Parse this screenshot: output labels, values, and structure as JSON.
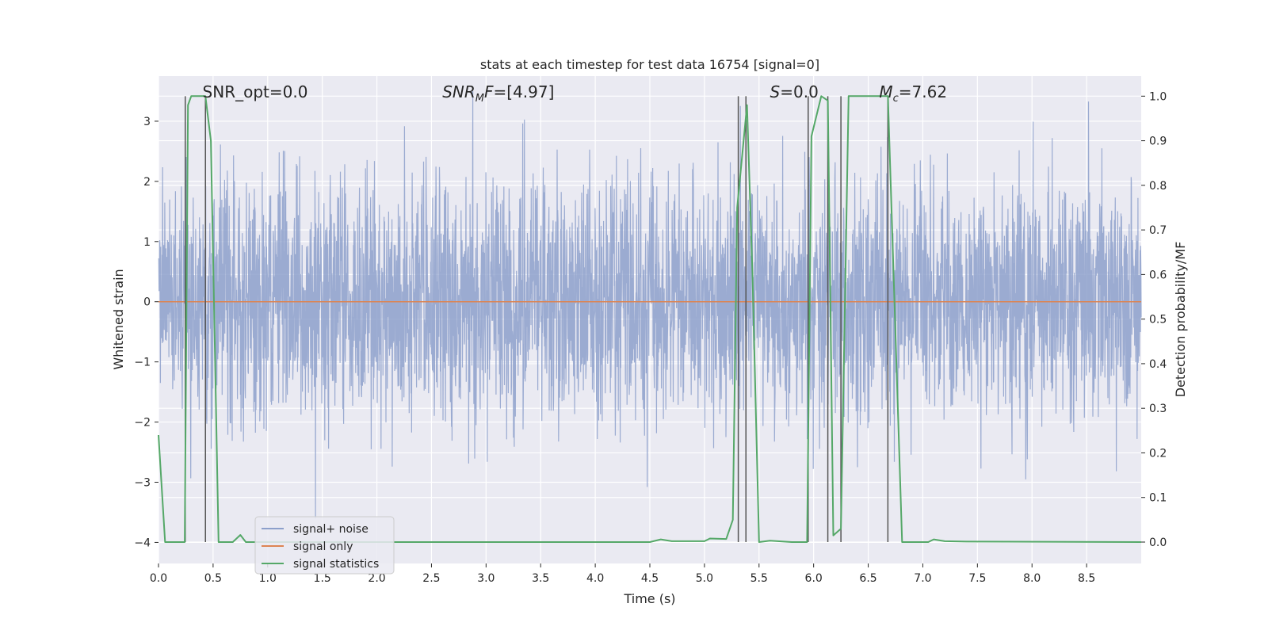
{
  "chart_data": {
    "type": "line",
    "title": "stats at each timestep for test data 16754 [signal=0]",
    "xlabel": "Time (s)",
    "ylabel_left": "Whitened strain",
    "ylabel_right": "Detection probability/MF",
    "xlim": [
      0.0,
      9.0
    ],
    "ylim_left": [
      -4.35,
      3.75
    ],
    "ylim_right": [
      -0.048,
      1.045
    ],
    "x_ticks": [
      "0.0",
      "0.5",
      "1.0",
      "1.5",
      "2.0",
      "2.5",
      "3.0",
      "3.5",
      "4.0",
      "4.5",
      "5.0",
      "5.5",
      "6.0",
      "6.5",
      "7.0",
      "7.5",
      "8.0",
      "8.5"
    ],
    "x_tick_values": [
      0.0,
      0.5,
      1.0,
      1.5,
      2.0,
      2.5,
      3.0,
      3.5,
      4.0,
      4.5,
      5.0,
      5.5,
      6.0,
      6.5,
      7.0,
      7.5,
      8.0,
      8.5
    ],
    "y_left_ticks": [
      "3",
      "2",
      "1",
      "0",
      "−1",
      "−2",
      "−3",
      "−4"
    ],
    "y_left_tick_values": [
      3,
      2,
      1,
      0,
      -1,
      -2,
      -3,
      -4
    ],
    "y_right_ticks": [
      "1.0",
      "0.9",
      "0.8",
      "0.7",
      "0.6",
      "0.5",
      "0.4",
      "0.3",
      "0.2",
      "0.1",
      "0.0"
    ],
    "y_right_tick_values": [
      1.0,
      0.9,
      0.8,
      0.7,
      0.6,
      0.5,
      0.4,
      0.3,
      0.2,
      0.1,
      0.0
    ],
    "grid": true,
    "legend_position": "lower-left",
    "annotations": [
      {
        "text": "SNR_opt=0.0",
        "x": 0.2
      },
      {
        "text": "SNR_MF=[4.97]",
        "x": 2.6
      },
      {
        "text": "S=0.0",
        "x": 5.6
      },
      {
        "text": "M_c=7.62",
        "x": 6.6
      }
    ],
    "series": [
      {
        "name": "signal+ noise",
        "color": "#8da0cb",
        "axis": "left",
        "kind": "noise",
        "sigma": 1.0,
        "x_range": [
          0.0,
          9.0
        ]
      },
      {
        "name": "signal only",
        "color": "#dd8452",
        "axis": "left",
        "kind": "constant",
        "value": 0.0
      },
      {
        "name": "signal statistics",
        "color": "#55a868",
        "axis": "right",
        "x": [
          0.0,
          0.06,
          0.24,
          0.27,
          0.3,
          0.43,
          0.48,
          0.55,
          0.68,
          0.75,
          0.8,
          1.0,
          4.5,
          4.6,
          4.7,
          5.0,
          5.05,
          5.2,
          5.26,
          5.3,
          5.39,
          5.44,
          5.5,
          5.6,
          5.8,
          5.94,
          5.98,
          6.07,
          6.13,
          6.18,
          6.25,
          6.32,
          6.68,
          6.81,
          7.05,
          7.1,
          7.2,
          7.4,
          9.0
        ],
        "y": [
          0.24,
          0.0,
          0.0,
          0.98,
          1.0,
          1.0,
          0.9,
          0.0,
          0.0,
          0.016,
          0.0,
          0.0,
          0.0,
          0.006,
          0.002,
          0.002,
          0.008,
          0.007,
          0.05,
          0.75,
          0.98,
          0.6,
          0.0,
          0.003,
          0.0,
          0.0,
          0.91,
          1.0,
          0.99,
          0.015,
          0.03,
          1.0,
          1.0,
          0.0,
          0.0,
          0.006,
          0.002,
          0.001,
          0.0
        ]
      },
      {
        "name": "event markers",
        "color": "#555555",
        "axis": "right",
        "kind": "vlines",
        "x": [
          0.245,
          0.43,
          5.31,
          5.38,
          5.95,
          6.13,
          6.25,
          6.68
        ],
        "y0": 0.0,
        "y1": 1.0
      }
    ],
    "legend": [
      "signal+ noise",
      "signal only",
      "signal statistics"
    ]
  }
}
